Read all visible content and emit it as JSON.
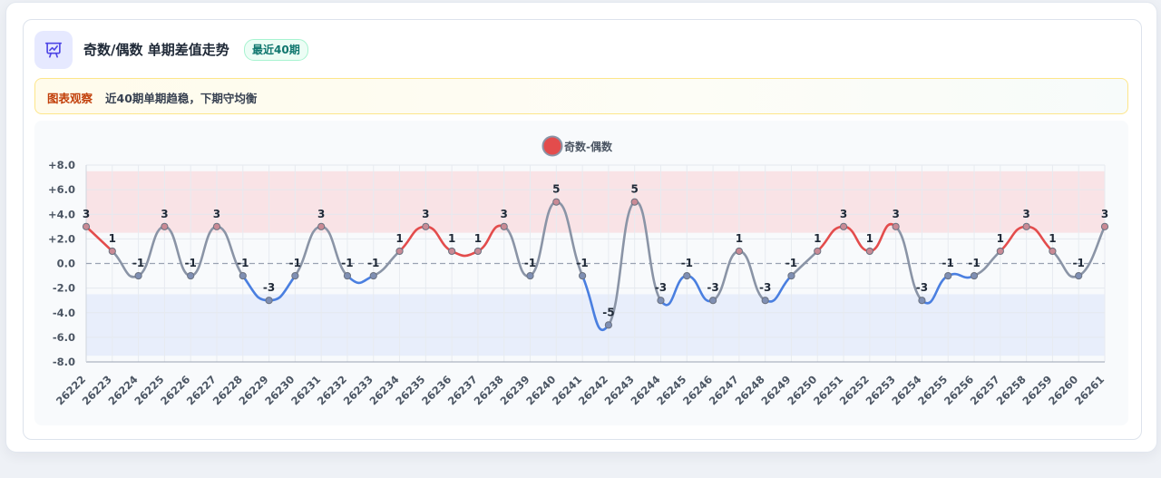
{
  "header": {
    "title": "奇数/偶数 单期差值走势",
    "badge": "最近40期",
    "icon": "presentation-chart-icon"
  },
  "note": {
    "tag": "图表观察",
    "text": "近40期单期趋稳，下期守均衡"
  },
  "colors": {
    "positive_line": "#e34c4c",
    "negative_line": "#4a7fe0",
    "neutral_line": "#8a94a6",
    "upper_band": "#f9e3e6",
    "lower_band": "#e8eefb",
    "legend_dot": "#e34c4c",
    "icon_bg": "#e6e9ff",
    "icon_stroke": "#4f46e5"
  },
  "chart_data": {
    "type": "line",
    "legend": [
      "奇数-偶数"
    ],
    "legend_position": "top-center",
    "categories": [
      "26222",
      "26223",
      "26224",
      "26225",
      "26226",
      "26227",
      "26228",
      "26229",
      "26230",
      "26231",
      "26232",
      "26233",
      "26234",
      "26235",
      "26236",
      "26237",
      "26238",
      "26239",
      "26240",
      "26241",
      "26242",
      "26243",
      "26244",
      "26245",
      "26246",
      "26247",
      "26248",
      "26249",
      "26250",
      "26251",
      "26252",
      "26253",
      "26254",
      "26255",
      "26256",
      "26257",
      "26258",
      "26259",
      "26260",
      "26261"
    ],
    "series": [
      {
        "name": "奇数-偶数",
        "values": [
          3,
          1,
          -1,
          3,
          -1,
          3,
          -1,
          -3,
          -1,
          3,
          -1,
          -1,
          1,
          3,
          1,
          1,
          3,
          -1,
          5,
          -1,
          -5,
          5,
          -3,
          -1,
          -3,
          1,
          -3,
          -1,
          1,
          3,
          1,
          3,
          -3,
          -1,
          -1,
          1,
          3,
          1,
          -1,
          3
        ]
      }
    ],
    "y_ticks": [
      "+8.0",
      "+6.0",
      "+4.0",
      "+2.0",
      "0.0",
      "-2.0",
      "-4.0",
      "-6.0",
      "-8.0"
    ],
    "ylim": [
      -8,
      8
    ],
    "bands": [
      {
        "from": 2.5,
        "to": 7.5,
        "color": "upper"
      },
      {
        "from": -7.5,
        "to": -2.5,
        "color": "lower"
      }
    ],
    "zero_line": "dashed",
    "grid": true,
    "data_labels": true,
    "xlabel": "",
    "ylabel": ""
  }
}
